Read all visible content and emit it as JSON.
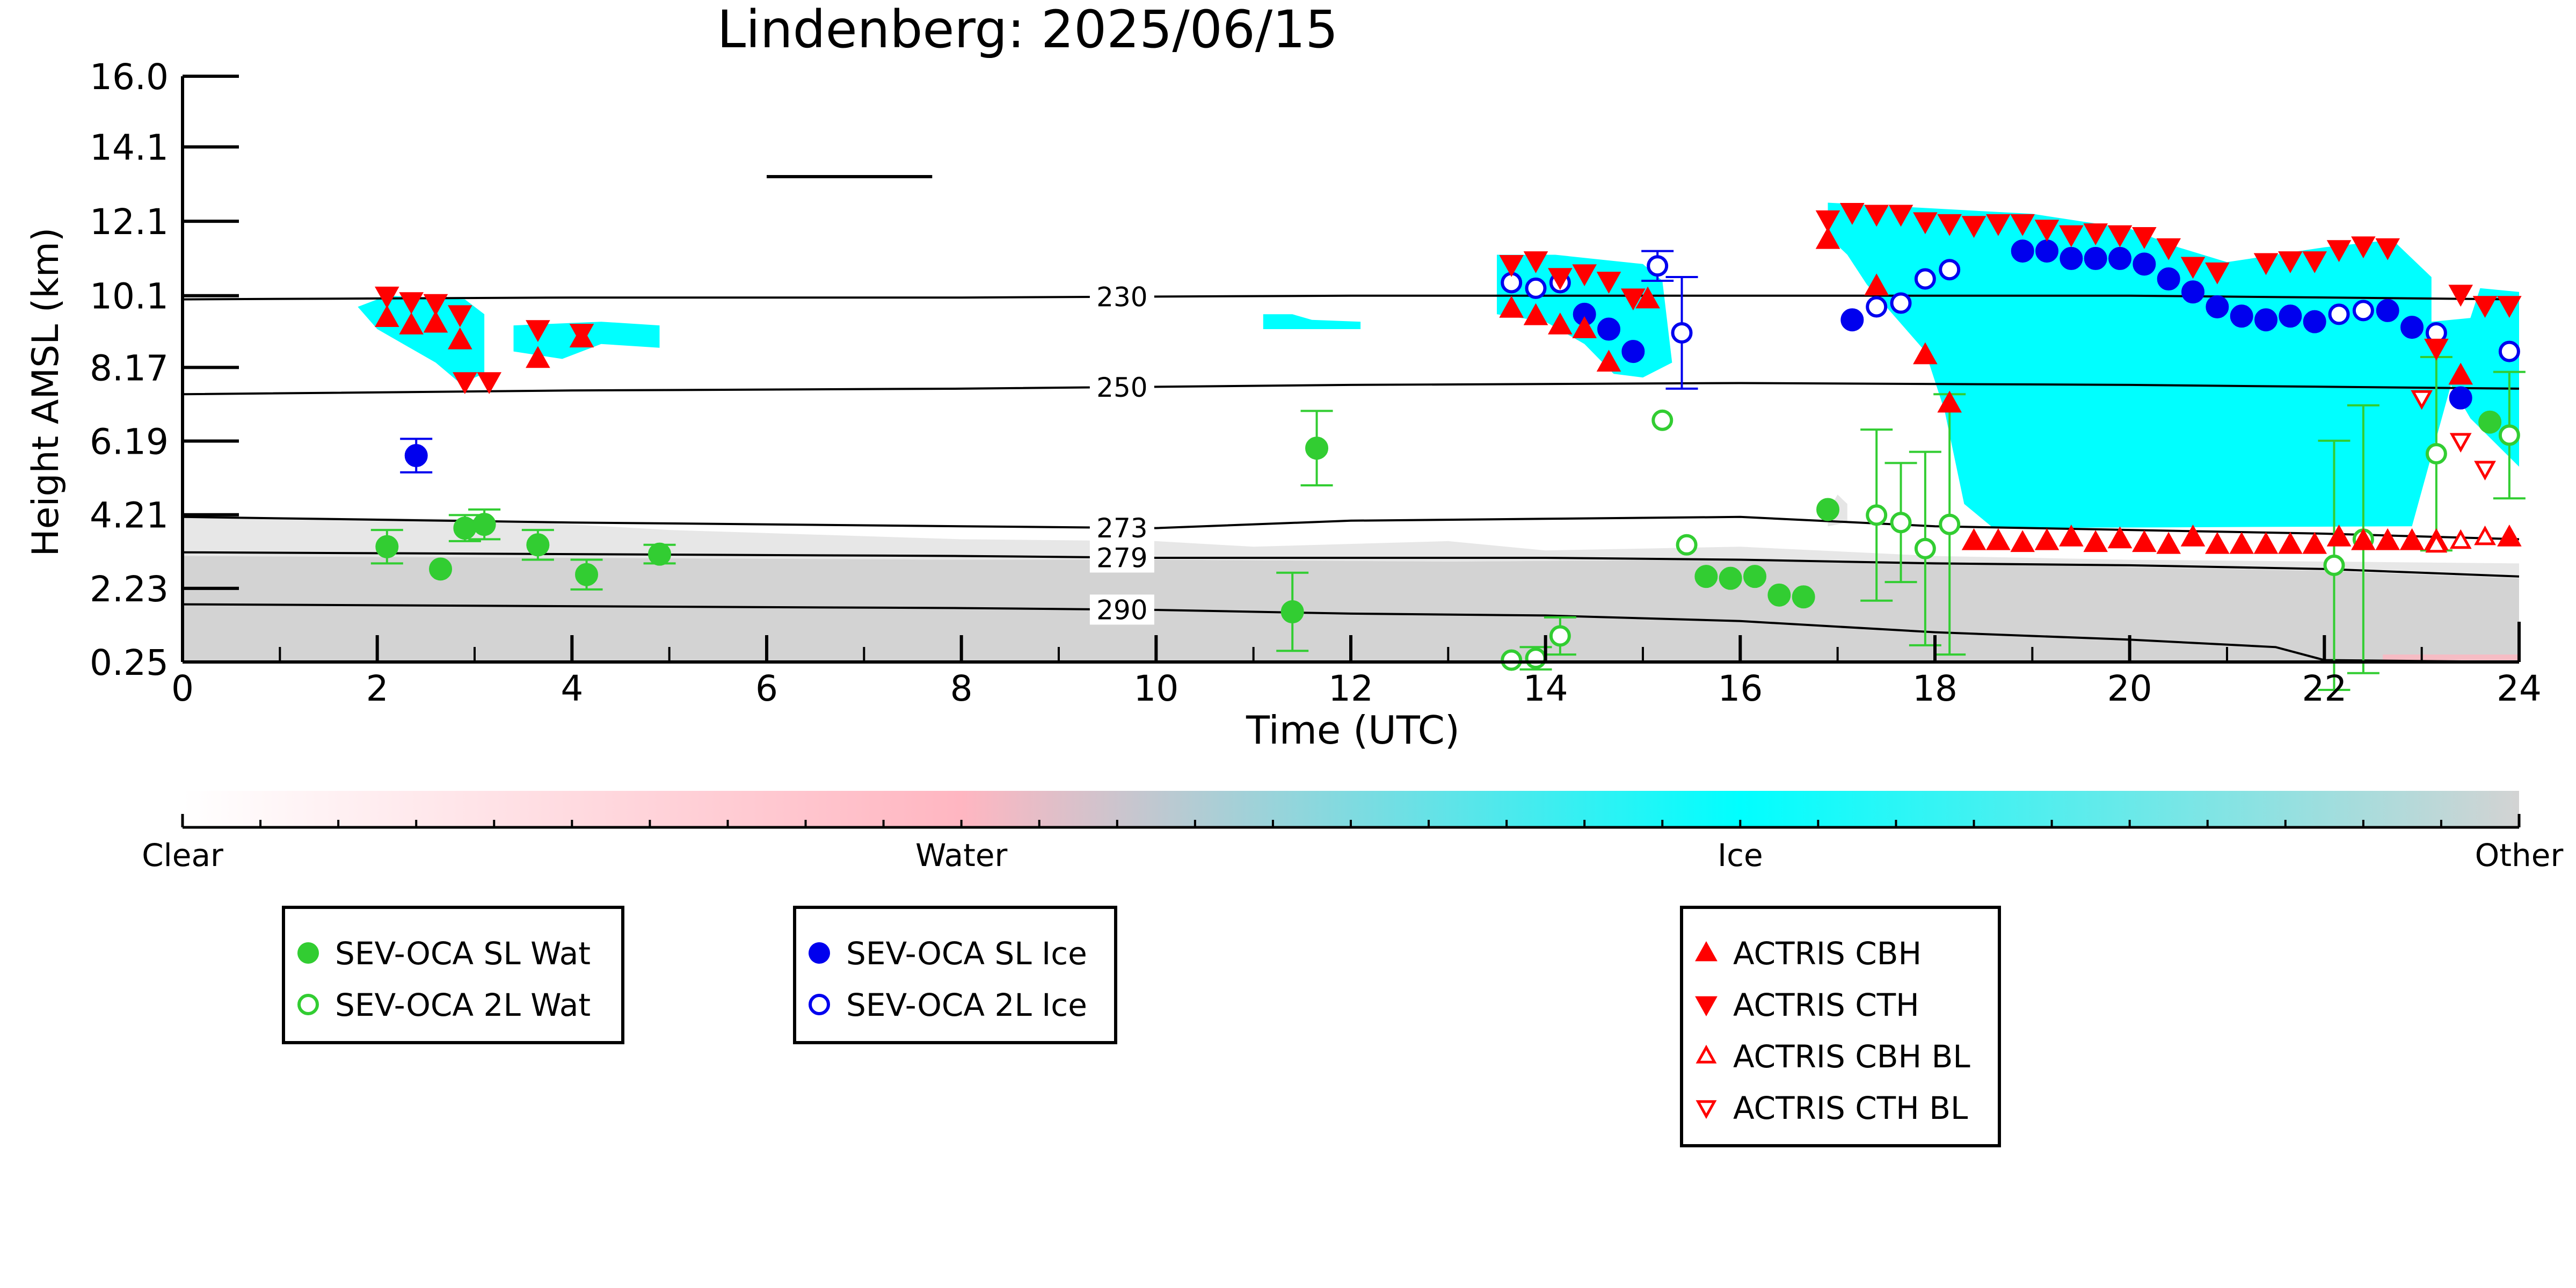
{
  "chart_data": {
    "type": "scatter",
    "title": "Lindenberg: 2025/06/15",
    "xlabel": "Time (UTC)",
    "ylabel": "Height AMSL (km)",
    "xlim": [
      0,
      24
    ],
    "ylim": [
      0.25,
      16.0
    ],
    "x_ticks": [
      "0",
      "2",
      "4",
      "6",
      "8",
      "10",
      "12",
      "14",
      "16",
      "18",
      "20",
      "22",
      "24"
    ],
    "y_ticks": [
      "0.25",
      "2.23",
      "4.21",
      "6.19",
      "8.17",
      "10.1",
      "12.1",
      "14.1",
      "16.0"
    ],
    "grid": false,
    "colorbar": {
      "labels": [
        "Clear",
        "Water",
        "Ice",
        "Other"
      ],
      "colors": [
        "#ffffff",
        "#ffb6c1",
        "#00ffff",
        "#d3d3d3"
      ]
    },
    "isotherms": [
      {
        "label": "230",
        "x": [
          0,
          4,
          8,
          12,
          16,
          20,
          24
        ],
        "y": [
          10.0,
          10.05,
          10.05,
          10.1,
          10.1,
          10.1,
          10.0
        ]
      },
      {
        "label": "250",
        "x": [
          0,
          4,
          8,
          12,
          16,
          20,
          24
        ],
        "y": [
          7.45,
          7.55,
          7.6,
          7.7,
          7.75,
          7.7,
          7.6
        ]
      },
      {
        "label": "273",
        "x": [
          0,
          4,
          8,
          10,
          12,
          14,
          16,
          18,
          20,
          22,
          24
        ],
        "y": [
          4.15,
          4.0,
          3.9,
          3.85,
          4.05,
          4.1,
          4.15,
          3.9,
          3.8,
          3.7,
          3.55
        ]
      },
      {
        "label": "279",
        "x": [
          0,
          4,
          8,
          10,
          12,
          14,
          16,
          18,
          20,
          22,
          24
        ],
        "y": [
          3.2,
          3.15,
          3.1,
          3.05,
          3.05,
          3.05,
          3.0,
          2.9,
          2.85,
          2.75,
          2.55
        ]
      },
      {
        "label": "290",
        "x": [
          0,
          4,
          8,
          10,
          12,
          14,
          16,
          18,
          20,
          21.5,
          22,
          24
        ],
        "y": [
          1.8,
          1.75,
          1.7,
          1.65,
          1.55,
          1.5,
          1.35,
          1.05,
          0.85,
          0.65,
          0.3,
          0.25
        ]
      },
      {
        "label": "",
        "x": [
          6.0,
          7.7
        ],
        "y": [
          13.3,
          13.3
        ]
      }
    ],
    "series": [
      {
        "name": "SEV-OCA SL Wat",
        "marker": "circle",
        "filled": true,
        "color": "#32cd32",
        "points": [
          {
            "x": 2.1,
            "y": 3.35,
            "err": 0.45
          },
          {
            "x": 2.65,
            "y": 2.75
          },
          {
            "x": 2.9,
            "y": 3.85,
            "err": 0.35
          },
          {
            "x": 3.1,
            "y": 3.95,
            "err": 0.4
          },
          {
            "x": 3.65,
            "y": 3.4,
            "err": 0.4
          },
          {
            "x": 4.15,
            "y": 2.6,
            "err": 0.4
          },
          {
            "x": 4.9,
            "y": 3.15,
            "err": 0.25
          },
          {
            "x": 11.4,
            "y": 1.6,
            "err": 1.05
          },
          {
            "x": 11.65,
            "y": 6.0,
            "err": 1.0
          },
          {
            "x": 15.65,
            "y": 2.55
          },
          {
            "x": 15.9,
            "y": 2.5
          },
          {
            "x": 16.15,
            "y": 2.55
          },
          {
            "x": 16.4,
            "y": 2.05
          },
          {
            "x": 16.65,
            "y": 2.0
          },
          {
            "x": 16.9,
            "y": 4.35
          },
          {
            "x": 23.7,
            "y": 6.7
          }
        ]
      },
      {
        "name": "SEV-OCA 2L Wat",
        "marker": "circle",
        "filled": false,
        "color": "#32cd32",
        "points": [
          {
            "x": 13.65,
            "y": 0.3
          },
          {
            "x": 13.9,
            "y": 0.35,
            "err": 0.3
          },
          {
            "x": 14.15,
            "y": 0.95,
            "err": 0.5
          },
          {
            "x": 15.2,
            "y": 6.75
          },
          {
            "x": 15.45,
            "y": 3.4
          },
          {
            "x": 17.4,
            "y": 4.2,
            "err": 2.3
          },
          {
            "x": 17.65,
            "y": 4.0,
            "err": 1.6
          },
          {
            "x": 17.9,
            "y": 3.3,
            "err": 2.6
          },
          {
            "x": 18.15,
            "y": 3.95,
            "err": 3.5
          },
          {
            "x": 22.1,
            "y": 2.85,
            "err": 3.35
          },
          {
            "x": 22.4,
            "y": 3.55,
            "err": 3.6
          },
          {
            "x": 23.15,
            "y": 5.85,
            "err": 2.6
          },
          {
            "x": 23.9,
            "y": 6.35,
            "err": 1.7
          }
        ]
      },
      {
        "name": "SEV-OCA SL Ice",
        "marker": "circle",
        "filled": true,
        "color": "#0000ee",
        "points": [
          {
            "x": 2.4,
            "y": 5.8,
            "err": 0.45
          },
          {
            "x": 14.4,
            "y": 9.6
          },
          {
            "x": 14.65,
            "y": 9.2
          },
          {
            "x": 14.9,
            "y": 8.6
          },
          {
            "x": 17.15,
            "y": 9.45
          },
          {
            "x": 18.9,
            "y": 11.3
          },
          {
            "x": 19.15,
            "y": 11.3
          },
          {
            "x": 19.4,
            "y": 11.1
          },
          {
            "x": 19.65,
            "y": 11.1
          },
          {
            "x": 19.9,
            "y": 11.1
          },
          {
            "x": 20.15,
            "y": 10.95
          },
          {
            "x": 20.4,
            "y": 10.55
          },
          {
            "x": 20.65,
            "y": 10.2
          },
          {
            "x": 20.9,
            "y": 9.8
          },
          {
            "x": 21.15,
            "y": 9.55
          },
          {
            "x": 21.4,
            "y": 9.45
          },
          {
            "x": 21.65,
            "y": 9.55
          },
          {
            "x": 21.9,
            "y": 9.4
          },
          {
            "x": 22.65,
            "y": 9.7
          },
          {
            "x": 22.9,
            "y": 9.25
          },
          {
            "x": 23.4,
            "y": 7.35
          }
        ]
      },
      {
        "name": "SEV-OCA 2L Ice",
        "marker": "circle",
        "filled": false,
        "color": "#0000ee",
        "points": [
          {
            "x": 13.65,
            "y": 10.45
          },
          {
            "x": 13.9,
            "y": 10.3
          },
          {
            "x": 14.15,
            "y": 10.45
          },
          {
            "x": 15.15,
            "y": 10.9,
            "err": 0.4
          },
          {
            "x": 15.4,
            "y": 9.1,
            "err": 1.5
          },
          {
            "x": 17.4,
            "y": 9.8
          },
          {
            "x": 17.65,
            "y": 9.9
          },
          {
            "x": 17.9,
            "y": 10.55
          },
          {
            "x": 18.15,
            "y": 10.8
          },
          {
            "x": 22.15,
            "y": 9.6
          },
          {
            "x": 22.4,
            "y": 9.7
          },
          {
            "x": 23.15,
            "y": 9.1
          },
          {
            "x": 23.9,
            "y": 8.6
          }
        ]
      },
      {
        "name": "ACTRIS CBH",
        "marker": "triangle-up",
        "filled": true,
        "color": "#ff0000",
        "points": [
          {
            "x": 2.1,
            "y": 9.5
          },
          {
            "x": 2.35,
            "y": 9.3
          },
          {
            "x": 2.6,
            "y": 9.35
          },
          {
            "x": 2.85,
            "y": 8.9
          },
          {
            "x": 3.65,
            "y": 8.4
          },
          {
            "x": 4.1,
            "y": 8.95
          },
          {
            "x": 13.65,
            "y": 9.75
          },
          {
            "x": 13.9,
            "y": 9.55
          },
          {
            "x": 14.15,
            "y": 9.3
          },
          {
            "x": 14.4,
            "y": 9.2
          },
          {
            "x": 14.65,
            "y": 8.3
          },
          {
            "x": 15.05,
            "y": 10.0
          },
          {
            "x": 16.9,
            "y": 11.6
          },
          {
            "x": 17.4,
            "y": 10.35
          },
          {
            "x": 17.9,
            "y": 8.5
          },
          {
            "x": 18.15,
            "y": 7.2
          },
          {
            "x": 18.4,
            "y": 3.5
          },
          {
            "x": 18.65,
            "y": 3.5
          },
          {
            "x": 18.9,
            "y": 3.45
          },
          {
            "x": 19.15,
            "y": 3.5
          },
          {
            "x": 19.4,
            "y": 3.6
          },
          {
            "x": 19.65,
            "y": 3.45
          },
          {
            "x": 19.9,
            "y": 3.55
          },
          {
            "x": 20.15,
            "y": 3.45
          },
          {
            "x": 20.4,
            "y": 3.4
          },
          {
            "x": 20.65,
            "y": 3.6
          },
          {
            "x": 20.9,
            "y": 3.4
          },
          {
            "x": 21.15,
            "y": 3.4
          },
          {
            "x": 21.4,
            "y": 3.4
          },
          {
            "x": 21.65,
            "y": 3.4
          },
          {
            "x": 21.9,
            "y": 3.4
          },
          {
            "x": 22.15,
            "y": 3.6
          },
          {
            "x": 22.4,
            "y": 3.5
          },
          {
            "x": 22.65,
            "y": 3.5
          },
          {
            "x": 22.9,
            "y": 3.5
          },
          {
            "x": 23.15,
            "y": 3.5
          },
          {
            "x": 23.4,
            "y": 7.95
          },
          {
            "x": 23.9,
            "y": 3.6
          }
        ]
      },
      {
        "name": "ACTRIS CTH",
        "marker": "triangle-down",
        "filled": true,
        "color": "#ff0000",
        "points": [
          {
            "x": 2.1,
            "y": 10.1
          },
          {
            "x": 2.35,
            "y": 9.95
          },
          {
            "x": 2.6,
            "y": 9.9
          },
          {
            "x": 2.85,
            "y": 9.6
          },
          {
            "x": 2.9,
            "y": 7.8
          },
          {
            "x": 3.15,
            "y": 7.8
          },
          {
            "x": 3.65,
            "y": 9.2
          },
          {
            "x": 4.1,
            "y": 9.1
          },
          {
            "x": 13.65,
            "y": 10.95
          },
          {
            "x": 13.9,
            "y": 11.05
          },
          {
            "x": 14.15,
            "y": 10.6
          },
          {
            "x": 14.4,
            "y": 10.7
          },
          {
            "x": 14.65,
            "y": 10.5
          },
          {
            "x": 14.9,
            "y": 10.05
          },
          {
            "x": 16.9,
            "y": 12.15
          },
          {
            "x": 17.15,
            "y": 12.35
          },
          {
            "x": 17.4,
            "y": 12.3
          },
          {
            "x": 17.65,
            "y": 12.3
          },
          {
            "x": 17.9,
            "y": 12.1
          },
          {
            "x": 18.15,
            "y": 12.05
          },
          {
            "x": 18.4,
            "y": 12.0
          },
          {
            "x": 18.65,
            "y": 12.05
          },
          {
            "x": 18.9,
            "y": 12.05
          },
          {
            "x": 19.15,
            "y": 11.9
          },
          {
            "x": 19.4,
            "y": 11.75
          },
          {
            "x": 19.65,
            "y": 11.8
          },
          {
            "x": 19.9,
            "y": 11.75
          },
          {
            "x": 20.15,
            "y": 11.7
          },
          {
            "x": 20.4,
            "y": 11.4
          },
          {
            "x": 20.65,
            "y": 10.9
          },
          {
            "x": 20.9,
            "y": 10.75
          },
          {
            "x": 21.4,
            "y": 11.0
          },
          {
            "x": 21.65,
            "y": 11.05
          },
          {
            "x": 21.9,
            "y": 11.05
          },
          {
            "x": 22.15,
            "y": 11.35
          },
          {
            "x": 22.4,
            "y": 11.45
          },
          {
            "x": 22.65,
            "y": 11.4
          },
          {
            "x": 23.15,
            "y": 8.7
          },
          {
            "x": 23.4,
            "y": 10.15
          },
          {
            "x": 23.65,
            "y": 9.85
          },
          {
            "x": 23.9,
            "y": 9.85
          }
        ]
      },
      {
        "name": "ACTRIS CBH BL",
        "marker": "triangle-up",
        "filled": false,
        "color": "#ff0000",
        "points": [
          {
            "x": 23.15,
            "y": 3.4
          },
          {
            "x": 23.4,
            "y": 3.5
          },
          {
            "x": 23.65,
            "y": 3.6
          }
        ]
      },
      {
        "name": "ACTRIS CTH BL",
        "marker": "triangle-down",
        "filled": false,
        "color": "#ff0000",
        "points": [
          {
            "x": 23.0,
            "y": 7.35
          },
          {
            "x": 23.4,
            "y": 6.2
          },
          {
            "x": 23.65,
            "y": 5.45
          }
        ]
      }
    ],
    "legends": [
      [
        "SEV-OCA SL Wat",
        "SEV-OCA 2L Wat"
      ],
      [
        "SEV-OCA SL Ice",
        "SEV-OCA 2L Ice"
      ],
      [
        "ACTRIS CBH",
        "ACTRIS CTH",
        "ACTRIS CBH BL",
        "ACTRIS CTH BL"
      ]
    ]
  }
}
